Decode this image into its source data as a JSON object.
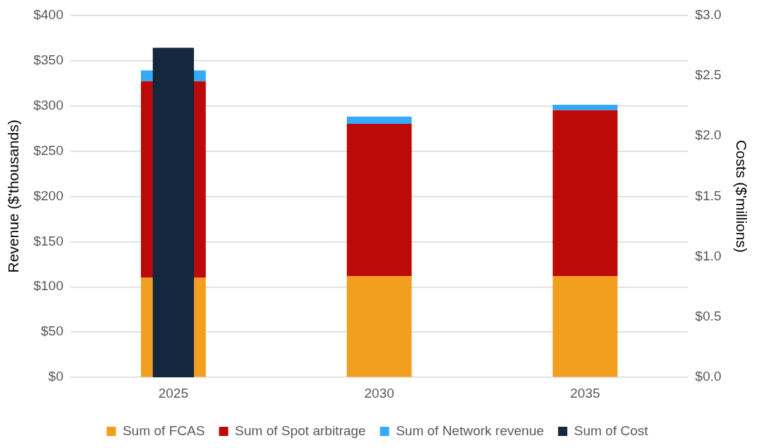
{
  "chart_data": {
    "type": "bar",
    "stacked": true,
    "categories": [
      "2025",
      "2030",
      "2035"
    ],
    "series": [
      {
        "name": "Sum of FCAS",
        "color": "#f29e1f",
        "values": [
          110,
          112,
          112
        ]
      },
      {
        "name": "Sum of Spot arbitrage",
        "color": "#bb0a07",
        "values": [
          217,
          168,
          183
        ]
      },
      {
        "name": "Sum of Network revenue",
        "color": "#35a9fb",
        "values": [
          12,
          8,
          6
        ]
      },
      {
        "name": "Sum of Cost",
        "color": "#13273d",
        "values": [
          2.73,
          null,
          null
        ],
        "axis": "y2"
      }
    ],
    "ylabel": "Revenue ($'thousands)",
    "y2label": "Costs ($'millions)",
    "ylim": [
      0,
      400
    ],
    "yticks": [
      {
        "value": 0,
        "label": "$0"
      },
      {
        "value": 50,
        "label": "$50"
      },
      {
        "value": 100,
        "label": "$100"
      },
      {
        "value": 150,
        "label": "$150"
      },
      {
        "value": 200,
        "label": "$200"
      },
      {
        "value": 250,
        "label": "$250"
      },
      {
        "value": 300,
        "label": "$300"
      },
      {
        "value": 350,
        "label": "$350"
      },
      {
        "value": 400,
        "label": "$400"
      }
    ],
    "y2lim": [
      0,
      3
    ],
    "y2ticks": [
      {
        "value": 0,
        "label": "$0.0"
      },
      {
        "value": 0.5,
        "label": "$0.5"
      },
      {
        "value": 1,
        "label": "$1.0"
      },
      {
        "value": 1.5,
        "label": "$1.5"
      },
      {
        "value": 2,
        "label": "$2.0"
      },
      {
        "value": 2.5,
        "label": "$2.5"
      },
      {
        "value": 3,
        "label": "$3.0"
      }
    ],
    "grid": "y",
    "legend": "bottom"
  }
}
